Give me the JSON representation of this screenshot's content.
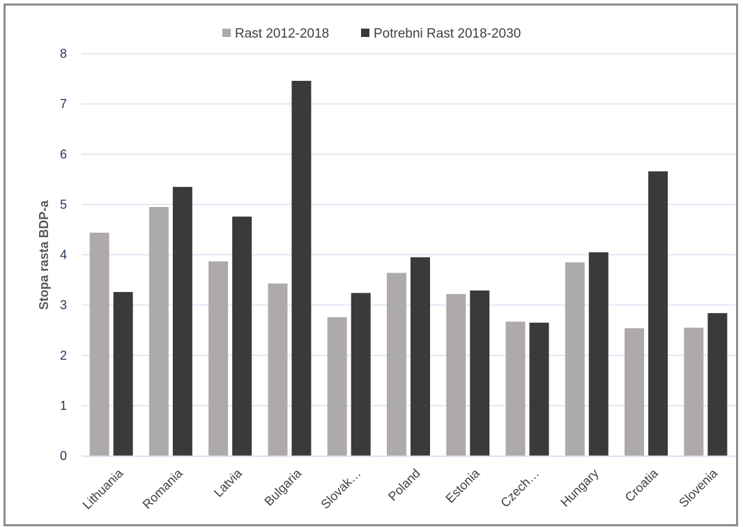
{
  "chart_data": {
    "type": "bar",
    "title": "",
    "xlabel": "",
    "ylabel": "Stopa rasta BDP-a",
    "ylim": [
      0,
      8
    ],
    "yticks": [
      0,
      1,
      2,
      3,
      4,
      5,
      6,
      7,
      8
    ],
    "grid": true,
    "legend_position": "top",
    "categories": [
      "Lithuania",
      "Romania",
      "Latvia",
      "Bulgaria",
      "Slovak…",
      "Poland",
      "Estonia",
      "Czech…",
      "Hungary",
      "Croatia",
      "Slovenia"
    ],
    "series": [
      {
        "name": "Rast 2012-2018",
        "color": "#aeaaaa",
        "values": [
          4.44,
          4.95,
          3.87,
          3.43,
          2.76,
          3.64,
          3.22,
          2.67,
          3.85,
          2.54,
          2.55
        ]
      },
      {
        "name": "Potrebni Rast 2018-2030",
        "color": "#3a3a3a",
        "values": [
          3.26,
          5.35,
          4.76,
          7.46,
          3.24,
          3.95,
          3.29,
          2.65,
          4.05,
          5.66,
          2.84
        ]
      }
    ]
  }
}
